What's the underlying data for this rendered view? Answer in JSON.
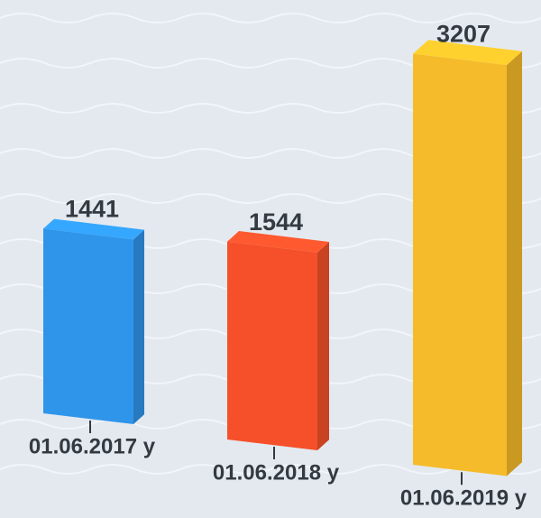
{
  "chart_data": {
    "type": "bar",
    "categories": [
      "01.06.2017 y",
      "01.06.2018 y",
      "01.06.2019 y"
    ],
    "values": [
      1441,
      1544,
      3207
    ],
    "colors": [
      "#2f95ea",
      "#f5502a",
      "#f5bb2a"
    ]
  }
}
